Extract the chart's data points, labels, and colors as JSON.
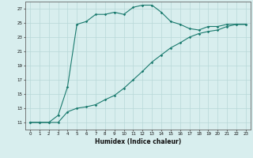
{
  "xlabel": "Humidex (Indice chaleur)",
  "line1_x": [
    0,
    1,
    2,
    3,
    4,
    5,
    6,
    7,
    8,
    9,
    10,
    11,
    12,
    13,
    14,
    15,
    16,
    17,
    18,
    19,
    20,
    21,
    22,
    23
  ],
  "line1_y": [
    11,
    11,
    11,
    12,
    16,
    24.8,
    25.2,
    26.2,
    26.2,
    26.5,
    26.2,
    27.2,
    27.5,
    27.5,
    26.5,
    25.2,
    24.8,
    24.2,
    24.0,
    24.5,
    24.5,
    24.8,
    24.8,
    24.8
  ],
  "line2_x": [
    0,
    1,
    2,
    3,
    4,
    5,
    6,
    7,
    8,
    9,
    10,
    11,
    12,
    13,
    14,
    15,
    16,
    17,
    18,
    19,
    20,
    21,
    22,
    23
  ],
  "line2_y": [
    11,
    11,
    11,
    11,
    12.5,
    13.0,
    13.2,
    13.5,
    14.2,
    14.8,
    15.8,
    17.0,
    18.2,
    19.5,
    20.5,
    21.5,
    22.2,
    23.0,
    23.5,
    23.8,
    24.0,
    24.5,
    24.8,
    24.8
  ],
  "line_color": "#1a7a6e",
  "bg_color": "#d8eeee",
  "grid_color": "#b8d8d8",
  "xlim": [
    -0.5,
    23.5
  ],
  "ylim": [
    10,
    28
  ],
  "yticks": [
    11,
    13,
    15,
    17,
    19,
    21,
    23,
    25,
    27
  ],
  "xticks": [
    0,
    1,
    2,
    3,
    4,
    5,
    6,
    7,
    8,
    9,
    10,
    11,
    12,
    13,
    14,
    15,
    16,
    17,
    18,
    19,
    20,
    21,
    22,
    23
  ],
  "tick_fontsize": 4.0,
  "xlabel_fontsize": 5.5
}
